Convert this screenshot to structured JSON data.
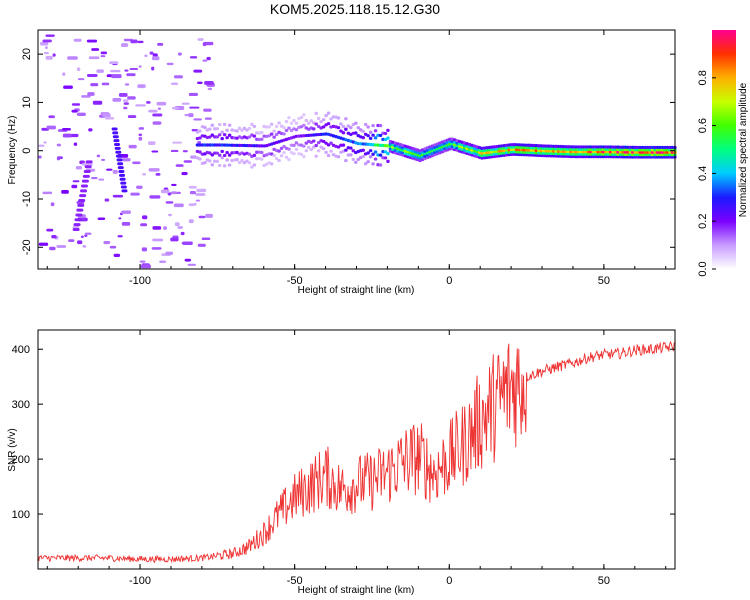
{
  "title": "KOM5.2025.118.15.12.G30",
  "chart_data": [
    {
      "type": "heatmap",
      "name": "spectrogram",
      "xlabel": "Height of straight line (km)",
      "ylabel": "Frequency (Hz)",
      "xlim": [
        -133,
        73
      ],
      "ylim": [
        -24.5,
        25
      ],
      "xticks": [
        -100,
        -50,
        0,
        50
      ],
      "yticks": [
        -20,
        -10,
        0,
        10,
        20
      ],
      "colorbar": {
        "label": "Normalized spectral amplitude",
        "range": [
          0,
          1
        ],
        "ticks": [
          0.0,
          0.2,
          0.4,
          0.6,
          0.8
        ],
        "colors": [
          "#ffffff",
          "#c89cff",
          "#7a00ff",
          "#1a1aff",
          "#00ccff",
          "#00ff80",
          "#40ff00",
          "#c8ff00",
          "#ffb000",
          "#ff3000",
          "#ff0090"
        ]
      },
      "ridge": {
        "description_points_x": [
          -74,
          -60,
          -50,
          -40,
          -30,
          -20,
          -10,
          0,
          10,
          20,
          30,
          40,
          50,
          60,
          73
        ],
        "frequency_hz": [
          1.2,
          1.0,
          3.0,
          3.5,
          1.5,
          1.0,
          -1.0,
          1.5,
          -0.5,
          0.3,
          0.0,
          -0.2,
          -0.2,
          -0.3,
          -0.3
        ],
        "amplitude": [
          0.3,
          0.25,
          0.2,
          0.3,
          0.35,
          0.65,
          0.6,
          0.6,
          0.75,
          0.8,
          0.85,
          0.85,
          0.9,
          0.95,
          0.95
        ]
      }
    },
    {
      "type": "line",
      "name": "snr",
      "xlabel": "Height of straight line (km)",
      "ylabel": "SNR (v/v)",
      "xlim": [
        -133,
        73
      ],
      "ylim": [
        0,
        435
      ],
      "xticks": [
        -100,
        -50,
        0,
        50
      ],
      "yticks": [
        100,
        200,
        300,
        400
      ],
      "color": "#ee3333",
      "x": [
        -133,
        -120,
        -110,
        -100,
        -90,
        -80,
        -70,
        -65,
        -60,
        -55,
        -50,
        -45,
        -40,
        -35,
        -30,
        -25,
        -20,
        -15,
        -10,
        -5,
        0,
        5,
        10,
        15,
        20,
        25,
        30,
        35,
        40,
        45,
        50,
        55,
        60,
        65,
        73
      ],
      "y": [
        20,
        20,
        20,
        18,
        18,
        20,
        28,
        40,
        65,
        100,
        130,
        150,
        170,
        145,
        155,
        160,
        175,
        195,
        205,
        175,
        200,
        230,
        270,
        300,
        330,
        350,
        360,
        368,
        375,
        385,
        390,
        392,
        398,
        400,
        405
      ]
    }
  ]
}
